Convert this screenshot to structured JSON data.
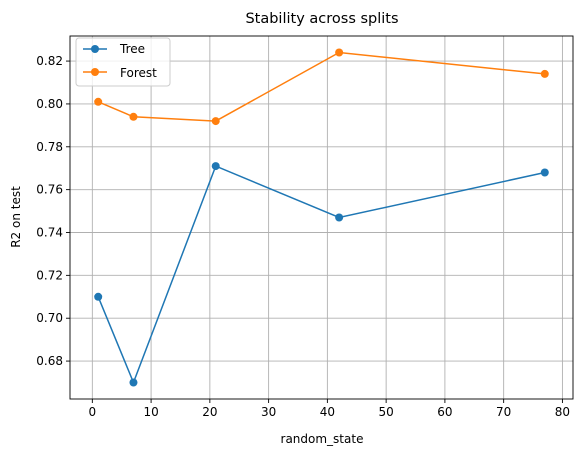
{
  "chart_data": {
    "type": "line",
    "title": "Stability across splits",
    "xlabel": "random_state",
    "ylabel": "R2 on test",
    "xlim": [
      -3.8,
      81.8
    ],
    "ylim": [
      0.6623,
      0.8317
    ],
    "xticks": [
      0,
      10,
      20,
      30,
      40,
      50,
      60,
      70,
      80
    ],
    "yticks": [
      0.68,
      0.7,
      0.72,
      0.74,
      0.76,
      0.78,
      0.8,
      0.82
    ],
    "ytick_labels": [
      "0.68",
      "0.70",
      "0.72",
      "0.74",
      "0.76",
      "0.78",
      "0.80",
      "0.82"
    ],
    "grid": true,
    "legend_position": "top-left",
    "series": [
      {
        "name": "Tree",
        "color": "#1f77b4",
        "x": [
          1,
          7,
          21,
          42,
          77
        ],
        "y": [
          0.71,
          0.67,
          0.771,
          0.747,
          0.768
        ]
      },
      {
        "name": "Forest",
        "color": "#ff7f0e",
        "x": [
          1,
          7,
          21,
          42,
          77
        ],
        "y": [
          0.801,
          0.794,
          0.792,
          0.824,
          0.814
        ]
      }
    ]
  }
}
